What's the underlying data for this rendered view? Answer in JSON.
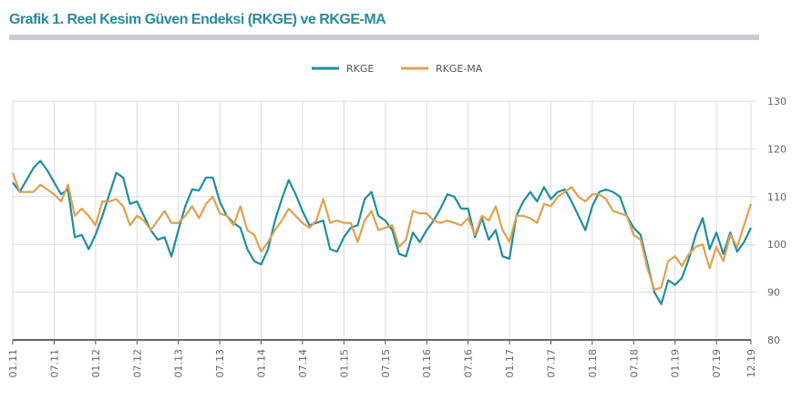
{
  "title": "Grafik 1. Reel Kesim Güven Endeksi (RKGE) ve RKGE-MA",
  "chart_data": {
    "type": "line",
    "title": "Grafik 1. Reel Kesim Güven Endeksi (RKGE) ve RKGE-MA",
    "x_start": "01.11",
    "x_end": "12.19",
    "x_frequency": "monthly",
    "x_tick_labels": [
      "01.11",
      "07.11",
      "01.12",
      "07.12",
      "01.13",
      "07.13",
      "01.14",
      "07.14",
      "01.15",
      "07.15",
      "01.16",
      "07.16",
      "01.17",
      "07.17",
      "01.18",
      "07.18",
      "01.19",
      "07.19",
      "12.19"
    ],
    "y_tick_labels": [
      "80",
      "90",
      "100",
      "110",
      "120",
      "130"
    ],
    "ylim": [
      80,
      130
    ],
    "y_axis_side": "right",
    "grid": true,
    "legend_position": "top-center",
    "series": [
      {
        "name": "RKGE",
        "color": "#1e8ea1",
        "values": [
          113,
          111,
          113.5,
          116,
          117.5,
          115.5,
          113,
          110.5,
          111.5,
          101.5,
          102,
          99,
          102,
          106,
          110.5,
          115,
          114,
          108.5,
          109,
          106,
          103,
          101,
          101.5,
          97.5,
          103,
          108,
          111.5,
          111.3,
          114,
          114,
          109,
          106,
          104.5,
          103.5,
          99,
          96.5,
          95.8,
          99,
          105,
          109.5,
          113.5,
          110.5,
          107,
          104,
          104.5,
          105,
          99,
          98.5,
          101.5,
          103.5,
          104,
          109.5,
          111,
          106,
          105,
          103,
          98,
          97.5,
          102.5,
          100.5,
          103,
          105,
          107.5,
          110.5,
          110,
          107.5,
          107.5,
          101.5,
          105.5,
          101,
          103,
          97.5,
          97,
          106,
          109,
          111,
          109,
          112,
          109.5,
          111,
          111.5,
          109,
          106,
          103,
          108,
          111,
          111.5,
          111,
          110,
          106,
          103.5,
          102,
          96,
          90,
          87.5,
          92.5,
          91.5,
          93,
          97,
          102,
          105.5,
          99,
          102.5,
          98,
          102.5,
          98.5,
          100.5,
          103.5
        ]
      },
      {
        "name": "RKGE-MA",
        "color": "#e0a14e",
        "values": [
          115,
          111,
          111,
          111,
          112.5,
          111.5,
          110.5,
          109,
          112.5,
          106,
          107.5,
          106,
          104,
          109,
          109,
          109.5,
          108,
          104,
          106,
          105,
          103,
          105,
          107,
          104.5,
          104.5,
          106,
          108,
          105.5,
          108.5,
          110,
          106.5,
          106,
          104,
          108,
          103,
          102,
          98.5,
          100.5,
          103,
          105,
          107.5,
          106,
          104.5,
          103.5,
          105,
          109.5,
          104.5,
          105,
          104.5,
          104.5,
          100.5,
          105,
          107,
          103,
          103.5,
          104,
          99.5,
          101,
          107,
          106.5,
          106.5,
          105,
          104.5,
          105,
          104.5,
          104,
          105.5,
          102,
          106,
          105,
          108,
          103,
          100.5,
          106,
          106,
          105.5,
          104.5,
          108.5,
          108,
          110,
          111,
          112,
          110,
          109,
          110.5,
          110.5,
          109.5,
          107,
          106.5,
          106,
          102,
          101,
          95,
          90.5,
          91,
          96.5,
          97.5,
          95.5,
          98,
          99.5,
          100,
          95,
          99.5,
          96.5,
          102,
          99.5,
          104,
          108.5
        ]
      }
    ]
  }
}
